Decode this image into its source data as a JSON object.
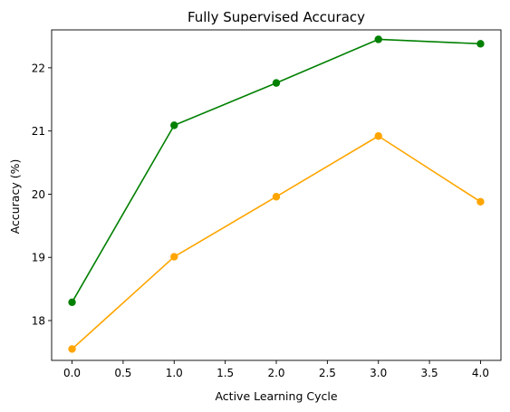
{
  "chart_data": {
    "type": "line",
    "title": "Fully Supervised Accuracy",
    "xlabel": "Active Learning Cycle",
    "ylabel": "Accuracy (%)",
    "xlim": [
      -0.2,
      4.2
    ],
    "ylim": [
      17.37,
      22.6
    ],
    "xticks": [
      0.0,
      0.5,
      1.0,
      1.5,
      2.0,
      2.5,
      3.0,
      3.5,
      4.0
    ],
    "xtick_labels": [
      "0.0",
      "0.5",
      "1.0",
      "1.5",
      "2.0",
      "2.5",
      "3.0",
      "3.5",
      "4.0"
    ],
    "yticks": [
      18,
      19,
      20,
      21,
      22
    ],
    "ytick_labels": [
      "18",
      "19",
      "20",
      "21",
      "22"
    ],
    "grid": false,
    "legend": null,
    "x": [
      0,
      1,
      2,
      3,
      4
    ],
    "series": [
      {
        "values": [
          18.29,
          21.09,
          21.76,
          22.45,
          22.38
        ],
        "color": "#008000",
        "marker": "circle"
      },
      {
        "values": [
          17.55,
          19.01,
          19.96,
          20.92,
          19.88
        ],
        "color": "#FFA500",
        "marker": "circle"
      }
    ]
  }
}
